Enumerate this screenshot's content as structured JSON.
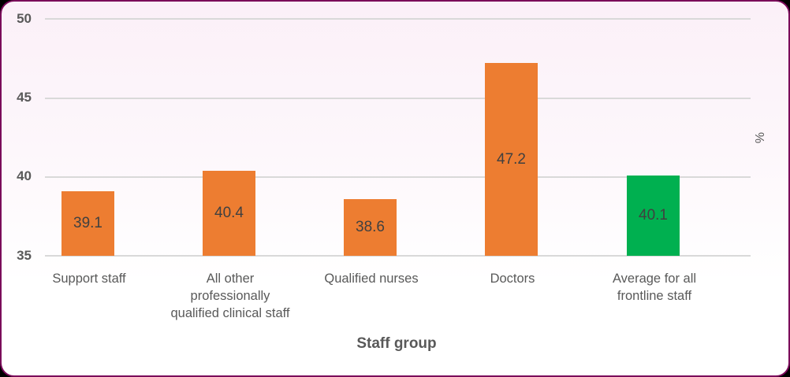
{
  "chart_data": {
    "type": "bar",
    "title": "",
    "xlabel": "Staff group",
    "ylabel": "%",
    "ylim": [
      35,
      50
    ],
    "yticks": [
      "50",
      "45",
      "40",
      "35"
    ],
    "grid": true,
    "categories": [
      "Support staff",
      "All other\nprofessionally\nqualified clinical staff",
      "Qualified nurses",
      "Doctors",
      "Average for all\nfrontline staff"
    ],
    "values": [
      39.1,
      40.4,
      38.6,
      47.2,
      40.1
    ],
    "data_labels": [
      "39.1",
      "40.4",
      "38.6",
      "47.2",
      "40.1"
    ],
    "colors": [
      "#ed7d31",
      "#ed7d31",
      "#ed7d31",
      "#ed7d31",
      "#00b050"
    ]
  }
}
